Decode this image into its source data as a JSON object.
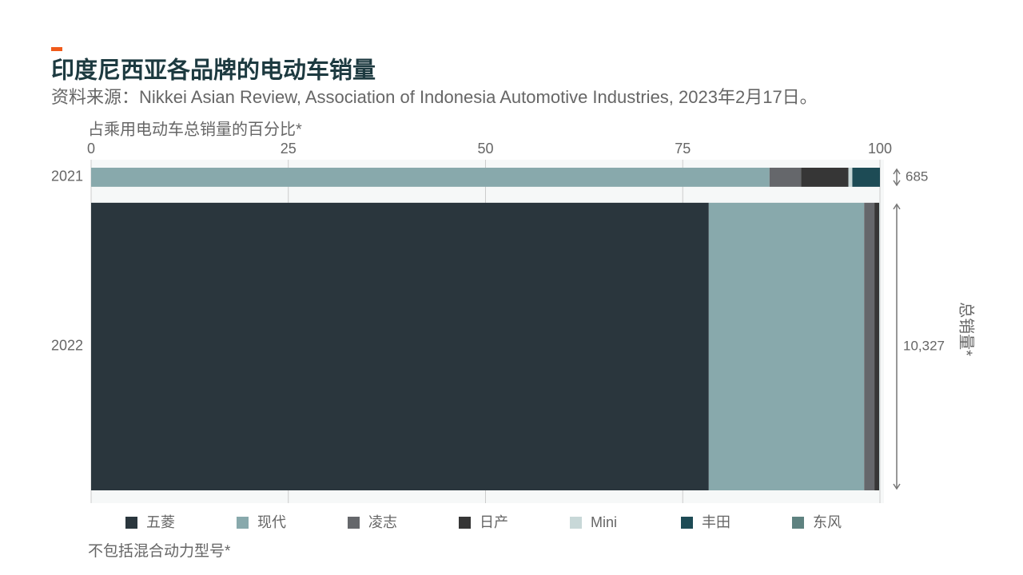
{
  "chart_data": {
    "type": "mekko",
    "title": "印度尼西亚各品牌的电动车销量",
    "subtitle": "资料来源：Nikkei Asian Review, Association of Indonesia Automotive Industries, 2023年2月17日。",
    "xlabel": "占乘用电动车总销量的百分比*",
    "footnote": "不包括混合动力型号*",
    "categories": [
      "2021",
      "2022"
    ],
    "xlim": [
      0,
      100
    ],
    "xticks": [
      0,
      25,
      50,
      75,
      100
    ],
    "grid": true,
    "series": [
      {
        "name": "五菱",
        "color": "#2a363d",
        "values": [
          0,
          78.3
        ]
      },
      {
        "name": "现代",
        "color": "#88a9ac",
        "values": [
          86,
          19.7
        ]
      },
      {
        "name": "凌志",
        "color": "#65676b",
        "values": [
          4,
          1.3
        ]
      },
      {
        "name": "日产",
        "color": "#363636",
        "values": [
          6,
          0.6
        ]
      },
      {
        "name": "Mini",
        "color": "#c8d8d8",
        "values": [
          0.5,
          0.1
        ]
      },
      {
        "name": "丰田",
        "color": "#1d4b55",
        "values": [
          3.5,
          0
        ]
      },
      {
        "name": "东风",
        "color": "#5e8280",
        "values": [
          0,
          0
        ]
      }
    ],
    "totals": {
      "name": "总销量*",
      "values": [
        685,
        10327
      ],
      "value_labels": [
        "685",
        "10,327"
      ]
    }
  }
}
